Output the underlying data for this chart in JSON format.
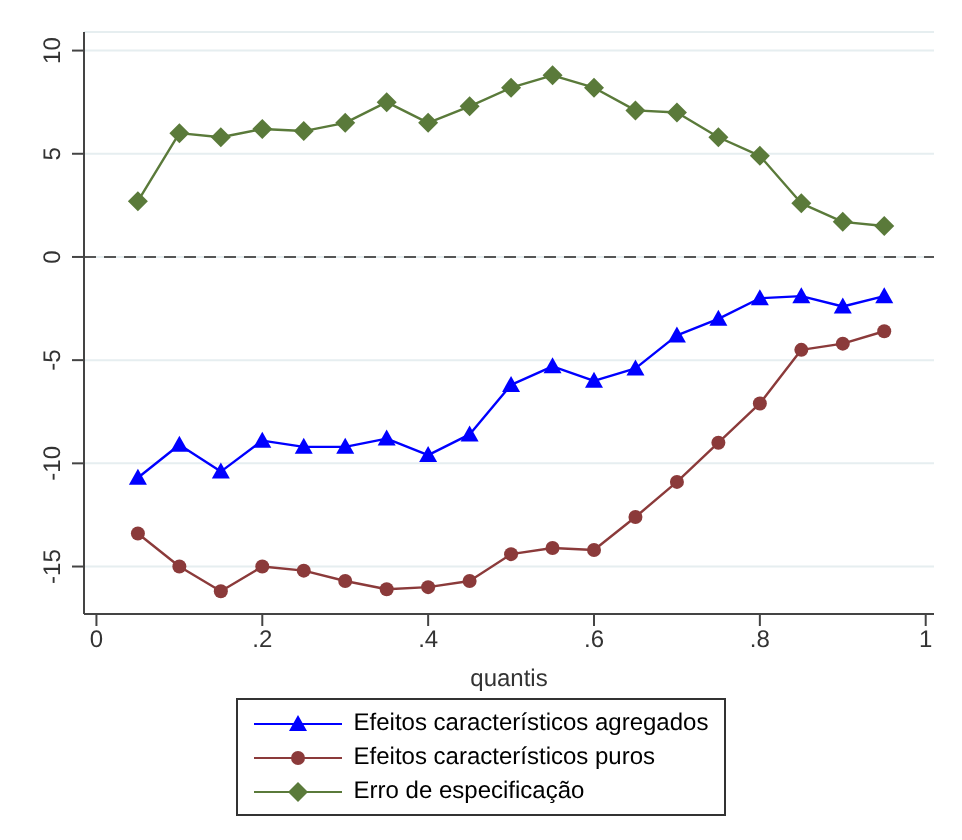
{
  "chart_data": {
    "type": "line",
    "xlabel": "quantis",
    "x": [
      0.05,
      0.1,
      0.15,
      0.2,
      0.25,
      0.3,
      0.35,
      0.4,
      0.45,
      0.5,
      0.55,
      0.6,
      0.65,
      0.7,
      0.75,
      0.8,
      0.85,
      0.9,
      0.95
    ],
    "series": [
      {
        "name": "Efeitos característicos agregados",
        "color": "#0000ff",
        "marker": "triangle",
        "values": [
          -10.7,
          -9.1,
          -10.4,
          -8.9,
          -9.2,
          -9.2,
          -8.8,
          -9.6,
          -8.6,
          -6.2,
          -5.3,
          -6.0,
          -5.4,
          -3.8,
          -3.0,
          -2.0,
          -1.9,
          -2.4,
          -1.9
        ]
      },
      {
        "name": "Efeitos característicos puros",
        "color": "#8b3a3a",
        "marker": "circle",
        "values": [
          -13.4,
          -15.0,
          -16.2,
          -15.0,
          -15.2,
          -15.7,
          -16.1,
          -16.0,
          -15.7,
          -14.4,
          -14.1,
          -14.2,
          -12.6,
          -10.9,
          -9.0,
          -7.1,
          -4.5,
          -4.2,
          -3.6
        ]
      },
      {
        "name": "Erro de especificação",
        "color": "#5a7a3a",
        "marker": "diamond",
        "values": [
          2.7,
          6.0,
          5.8,
          6.2,
          6.1,
          6.5,
          7.5,
          6.5,
          7.3,
          8.2,
          8.8,
          8.2,
          7.1,
          7.0,
          5.8,
          4.9,
          2.6,
          1.7,
          1.5
        ]
      }
    ],
    "xlim": [
      -0.015,
      1.01
    ],
    "xticks": [
      {
        "value": 0,
        "label": "0"
      },
      {
        "value": 0.2,
        "label": ".2"
      },
      {
        "value": 0.4,
        "label": ".4"
      },
      {
        "value": 0.6,
        "label": ".6"
      },
      {
        "value": 0.8,
        "label": ".8"
      },
      {
        "value": 1,
        "label": "1"
      }
    ],
    "ylim": [
      -17.3,
      10.9
    ],
    "yticks": [
      -15,
      -10,
      -5,
      0,
      5,
      10
    ],
    "grid": "y",
    "legend": "bottom",
    "line_style": "solid",
    "ref_lines": [
      {
        "axis": "y",
        "value": 0,
        "label": null,
        "color": "#555555",
        "line_style": "dashed"
      }
    ]
  }
}
